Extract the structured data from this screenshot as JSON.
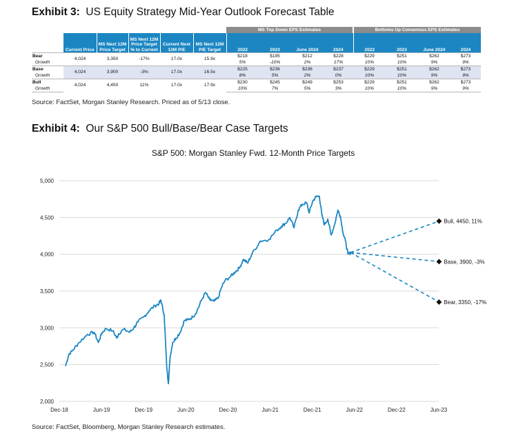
{
  "exhibit3": {
    "label": "Exhibit 3:",
    "title": "US Equity Strategy Mid-Year Outlook Forecast Table",
    "group_headers": [
      "MS Top Down EPS Estimates",
      "Bottoms Up Consensus EPS Estimates"
    ],
    "columns": [
      "Current Price",
      "MS Next 12M Price Target",
      "MS Next 12M Price Target % to Current",
      "Current Next 12M P/E",
      "MS Next 12M P/E Target",
      "2022",
      "2023",
      "June 2024",
      "2024",
      "2022",
      "2023",
      "June 2024",
      "2024"
    ],
    "rows": [
      {
        "case": "Bear",
        "sub": "Growth",
        "values": [
          "4,024",
          "3,350",
          "-17%",
          "17.0x",
          "15.9x",
          "$218",
          "$195",
          "$212",
          "$228",
          "$229",
          "$251",
          "$262",
          "$273"
        ],
        "growth": [
          "5%",
          "-10%",
          "2%",
          "17%",
          "10%",
          "10%",
          "9%",
          "9%"
        ]
      },
      {
        "case": "Base",
        "sub": "Growth",
        "values": [
          "4,024",
          "3,900",
          "-3%",
          "17.0x",
          "16.5x",
          "$225",
          "$236",
          "$236",
          "$237",
          "$229",
          "$251",
          "$262",
          "$273"
        ],
        "growth": [
          "8%",
          "5%",
          "2%",
          "0%",
          "10%",
          "10%",
          "9%",
          "9%"
        ]
      },
      {
        "case": "Bull",
        "sub": "Growth",
        "values": [
          "4,024",
          "4,450",
          "11%",
          "17.0x",
          "17.9x",
          "$230",
          "$245",
          "$249",
          "$253",
          "$229",
          "$251",
          "$262",
          "$273"
        ],
        "growth": [
          "10%",
          "7%",
          "5%",
          "3%",
          "10%",
          "10%",
          "9%",
          "9%"
        ]
      }
    ],
    "source": "Source: FactSet, Morgan Stanley Research. Priced as of 5/13 close."
  },
  "exhibit4": {
    "label": "Exhibit 4:",
    "title": "Our S&P 500 Bull/Base/Bear Case Targets",
    "source": "Source: FactSet, Bloomberg, Morgan Stanley Research estimates."
  },
  "colors": {
    "line": "#1b86c2",
    "header": "#1b86c2",
    "group_header": "#8c8c8c",
    "shade": "#dfe4f2",
    "marker": "#111111"
  },
  "chart_data": {
    "type": "line",
    "title": "S&P 500: Morgan Stanley Fwd. 12-Month Price Targets",
    "xlabel": "",
    "ylabel": "",
    "ylim": [
      2000,
      5000
    ],
    "yticks": [
      2000,
      2500,
      3000,
      3500,
      4000,
      4500,
      5000
    ],
    "ytick_labels": [
      "2,000",
      "2,500",
      "3,000",
      "3,500",
      "4,000",
      "4,500",
      "5,000"
    ],
    "xlim": [
      "2018-12",
      "2023-06"
    ],
    "xtick_labels": [
      "Dec-18",
      "Jun-19",
      "Dec-19",
      "Jun-20",
      "Dec-20",
      "Jun-21",
      "Dec-21",
      "Jun-22",
      "Dec-22",
      "Jun-23"
    ],
    "grid": true,
    "series": [
      {
        "name": "S&P 500",
        "x": [
          2018.99,
          2019.03,
          2019.08,
          2019.15,
          2019.25,
          2019.33,
          2019.38,
          2019.42,
          2019.47,
          2019.55,
          2019.6,
          2019.62,
          2019.68,
          2019.75,
          2019.8,
          2019.85,
          2019.92,
          2019.98,
          2020.05,
          2020.1,
          2020.12,
          2020.16,
          2020.19,
          2020.21,
          2020.23,
          2020.26,
          2020.3,
          2020.35,
          2020.4,
          2020.45,
          2020.5,
          2020.55,
          2020.6,
          2020.65,
          2020.7,
          2020.75,
          2020.8,
          2020.84,
          2020.88,
          2020.95,
          2021.0,
          2021.05,
          2021.1,
          2021.15,
          2021.2,
          2021.3,
          2021.4,
          2021.5,
          2021.55,
          2021.6,
          2021.65,
          2021.7,
          2021.75,
          2021.8,
          2021.85,
          2021.88,
          2021.92,
          2021.96,
          2022.0,
          2022.03,
          2022.06,
          2022.1,
          2022.14,
          2022.18,
          2022.22,
          2022.25,
          2022.28,
          2022.31,
          2022.34,
          2022.37
        ],
        "y": [
          2480,
          2640,
          2700,
          2800,
          2910,
          2940,
          2800,
          2930,
          2990,
          2960,
          2860,
          2920,
          2980,
          2940,
          3000,
          3080,
          3150,
          3230,
          3300,
          3330,
          3380,
          3180,
          2480,
          2240,
          2600,
          2800,
          2860,
          2940,
          3100,
          3110,
          3150,
          3230,
          3370,
          3480,
          3380,
          3360,
          3400,
          3550,
          3640,
          3700,
          3760,
          3810,
          3930,
          3880,
          4000,
          4180,
          4200,
          4330,
          4380,
          4420,
          4500,
          4360,
          4600,
          4680,
          4700,
          4560,
          4720,
          4780,
          4790,
          4540,
          4400,
          4480,
          4260,
          4400,
          4600,
          4520,
          4300,
          4180,
          4000,
          4020
        ]
      }
    ],
    "targets": [
      {
        "label": "Bull, 4450, 11%",
        "x": 2023.42,
        "y": 4450
      },
      {
        "label": "Base, 3900, -3%",
        "x": 2023.42,
        "y": 3900
      },
      {
        "label": "Bear, 3350, -17%",
        "x": 2023.42,
        "y": 3350
      }
    ],
    "target_origin": {
      "x": 2022.37,
      "y": 4024
    }
  }
}
